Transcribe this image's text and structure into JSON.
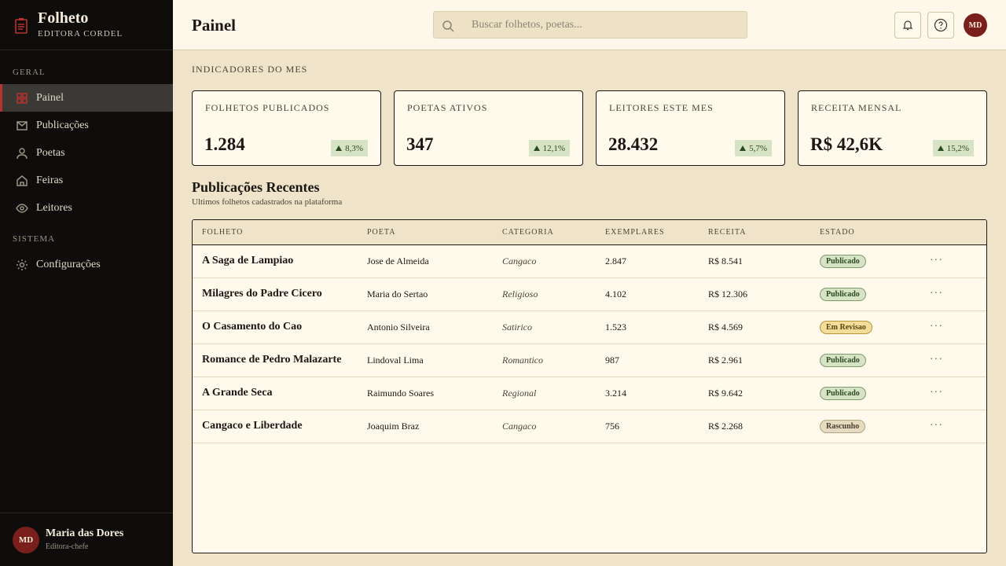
{
  "sidebar": {
    "brand": {
      "title": "Folheto",
      "subtitle": "EDITORA CORDEL"
    },
    "sections": [
      {
        "label": "GERAL",
        "items": [
          "Painel",
          "Publicações",
          "Poetas",
          "Feiras",
          "Leitores"
        ]
      },
      {
        "label": "SISTEMA",
        "items": [
          "Configurações"
        ]
      }
    ],
    "user": {
      "initials": "MD",
      "name": "Maria das Dores",
      "role": "Editora-chefe"
    }
  },
  "header": {
    "title": "Painel",
    "search_placeholder": "Buscar folhetos, poetas..."
  },
  "indicators": {
    "title": "INDICADORES DO MES",
    "cards": [
      {
        "label": "FOLHETOS PUBLICADOS",
        "value": "1.284",
        "change": "8,3%"
      },
      {
        "label": "POETAS ATIVOS",
        "value": "347",
        "change": "12,1%"
      },
      {
        "label": "LEITORES ESTE MES",
        "value": "28.432",
        "change": "5,7%"
      },
      {
        "label": "RECEITA MENSAL",
        "value": "R$ 42,6K",
        "change": "15,2%"
      }
    ]
  },
  "recent": {
    "title": "Publicações Recentes",
    "subtitle": "Ultimos folhetos cadastrados na plataforma",
    "columns": [
      "FOLHETO",
      "POETA",
      "CATEGORIA",
      "EXEMPLARES",
      "RECEITA",
      "ESTADO"
    ],
    "rows": [
      [
        "A Saga de Lampiao",
        "Jose de Almeida",
        "Cangaco",
        "2.847",
        "R$ 8.541",
        "Publicado"
      ],
      [
        "Milagres do Padre Cicero",
        "Maria do Sertao",
        "Religioso",
        "4.102",
        "R$ 12.306",
        "Publicado"
      ],
      [
        "O Casamento do Cao",
        "Antonio Silveira",
        "Satirico",
        "1.523",
        "R$ 4.569",
        "Em Revisao"
      ],
      [
        "Romance de Pedro Malazarte",
        "Lindoval Lima",
        "Romantico",
        "987",
        "R$ 2.961",
        "Publicado"
      ],
      [
        "A Grande Seca",
        "Raimundo Soares",
        "Regional",
        "3.214",
        "R$ 9.642",
        "Publicado"
      ],
      [
        "Cangaco e Liberdade",
        "Joaquim Braz",
        "Cangaco",
        "756",
        "R$ 2.268",
        "Rascunho"
      ]
    ]
  }
}
